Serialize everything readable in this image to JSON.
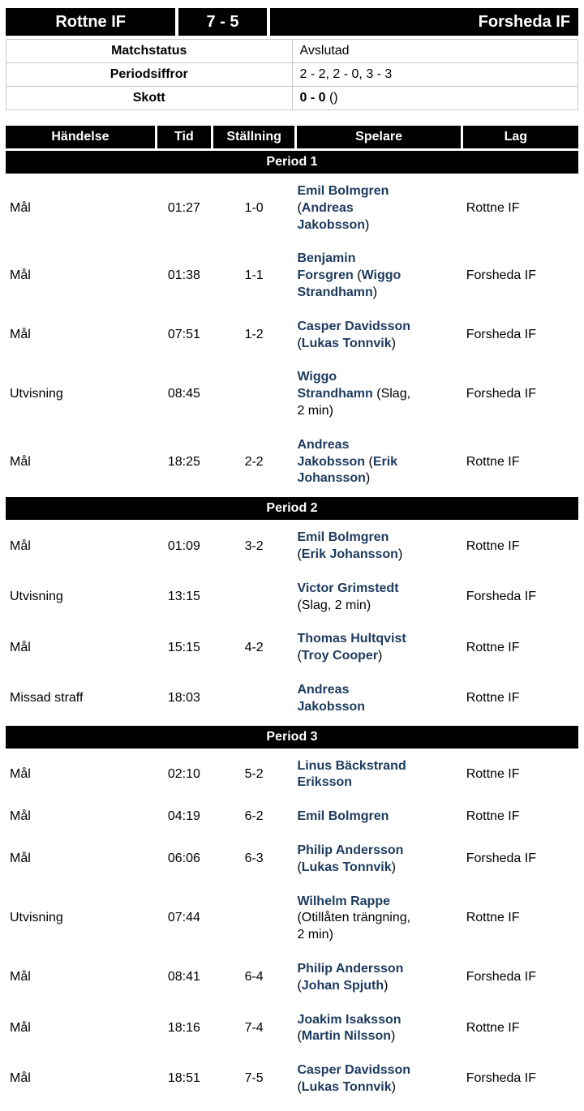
{
  "colors": {
    "banner_background": "#000000",
    "banner_text": "#ffffff",
    "player_name": "#1c3a5e"
  },
  "scoreboard": {
    "home_team": "Rottne IF",
    "score": "7 - 5",
    "away_team": "Forsheda IF"
  },
  "match_info": {
    "rows": [
      {
        "label": "Matchstatus",
        "value": "Avslutad"
      },
      {
        "label": "Periodsiffror",
        "value": "2 - 2, 2 - 0, 3 - 3"
      },
      {
        "label": "Skott",
        "value_bold": "0 - 0",
        "value_rest": " ()"
      }
    ]
  },
  "events_table": {
    "headers": [
      "Händelse",
      "Tid",
      "Ställning",
      "Spelare",
      "Lag"
    ],
    "periods": [
      {
        "title": "Period 1",
        "events": [
          {
            "event": "Mål",
            "time": "01:27",
            "score": "1-0",
            "player": "Emil Bolmgren",
            "assist": "Andreas Jakobsson",
            "team": "Rottne IF"
          },
          {
            "event": "Mål",
            "time": "01:38",
            "score": "1-1",
            "player": "Benjamin Forsgren",
            "assist": "Wiggo Strandhamn",
            "team": "Forsheda IF"
          },
          {
            "event": "Mål",
            "time": "07:51",
            "score": "1-2",
            "player": "Casper Davidsson",
            "assist": "Lukas Tonnvik",
            "team": "Forsheda IF"
          },
          {
            "event": "Utvisning",
            "time": "08:45",
            "score": "",
            "player": "Wiggo Strandhamn",
            "info": "Slag, 2 min",
            "team": "Forsheda IF"
          },
          {
            "event": "Mål",
            "time": "18:25",
            "score": "2-2",
            "player": "Andreas Jakobsson",
            "assist": "Erik Johansson",
            "team": "Rottne IF"
          }
        ]
      },
      {
        "title": "Period 2",
        "events": [
          {
            "event": "Mål",
            "time": "01:09",
            "score": "3-2",
            "player": "Emil Bolmgren",
            "assist": "Erik Johansson",
            "team": "Rottne IF"
          },
          {
            "event": "Utvisning",
            "time": "13:15",
            "score": "",
            "player": "Victor Grimstedt",
            "info": "Slag, 2 min",
            "team": "Forsheda IF"
          },
          {
            "event": "Mål",
            "time": "15:15",
            "score": "4-2",
            "player": "Thomas Hultqvist",
            "assist": "Troy Cooper",
            "team": "Rottne IF"
          },
          {
            "event": "Missad straff",
            "time": "18:03",
            "score": "",
            "player": "Andreas Jakobsson",
            "team": "Rottne IF"
          }
        ]
      },
      {
        "title": "Period 3",
        "events": [
          {
            "event": "Mål",
            "time": "02:10",
            "score": "5-2",
            "player": "Linus Bäckstrand Eriksson",
            "team": "Rottne IF"
          },
          {
            "event": "Mål",
            "time": "04:19",
            "score": "6-2",
            "player": "Emil Bolmgren",
            "team": "Rottne IF"
          },
          {
            "event": "Mål",
            "time": "06:06",
            "score": "6-3",
            "player": "Philip Andersson",
            "assist": "Lukas Tonnvik",
            "team": "Forsheda IF"
          },
          {
            "event": "Utvisning",
            "time": "07:44",
            "score": "",
            "player": "Wilhelm Rappe",
            "info": "Otillåten trängning, 2 min",
            "team": "Rottne IF"
          },
          {
            "event": "Mål",
            "time": "08:41",
            "score": "6-4",
            "player": "Philip Andersson",
            "assist": "Johan Spjuth",
            "team": "Forsheda IF"
          },
          {
            "event": "Mål",
            "time": "18:16",
            "score": "7-4",
            "player": "Joakim Isaksson",
            "assist": "Martin Nilsson",
            "team": "Rottne IF"
          },
          {
            "event": "Mål",
            "time": "18:51",
            "score": "7-5",
            "player": "Casper Davidsson",
            "assist": "Lukas Tonnvik",
            "team": "Forsheda IF"
          }
        ]
      }
    ]
  }
}
